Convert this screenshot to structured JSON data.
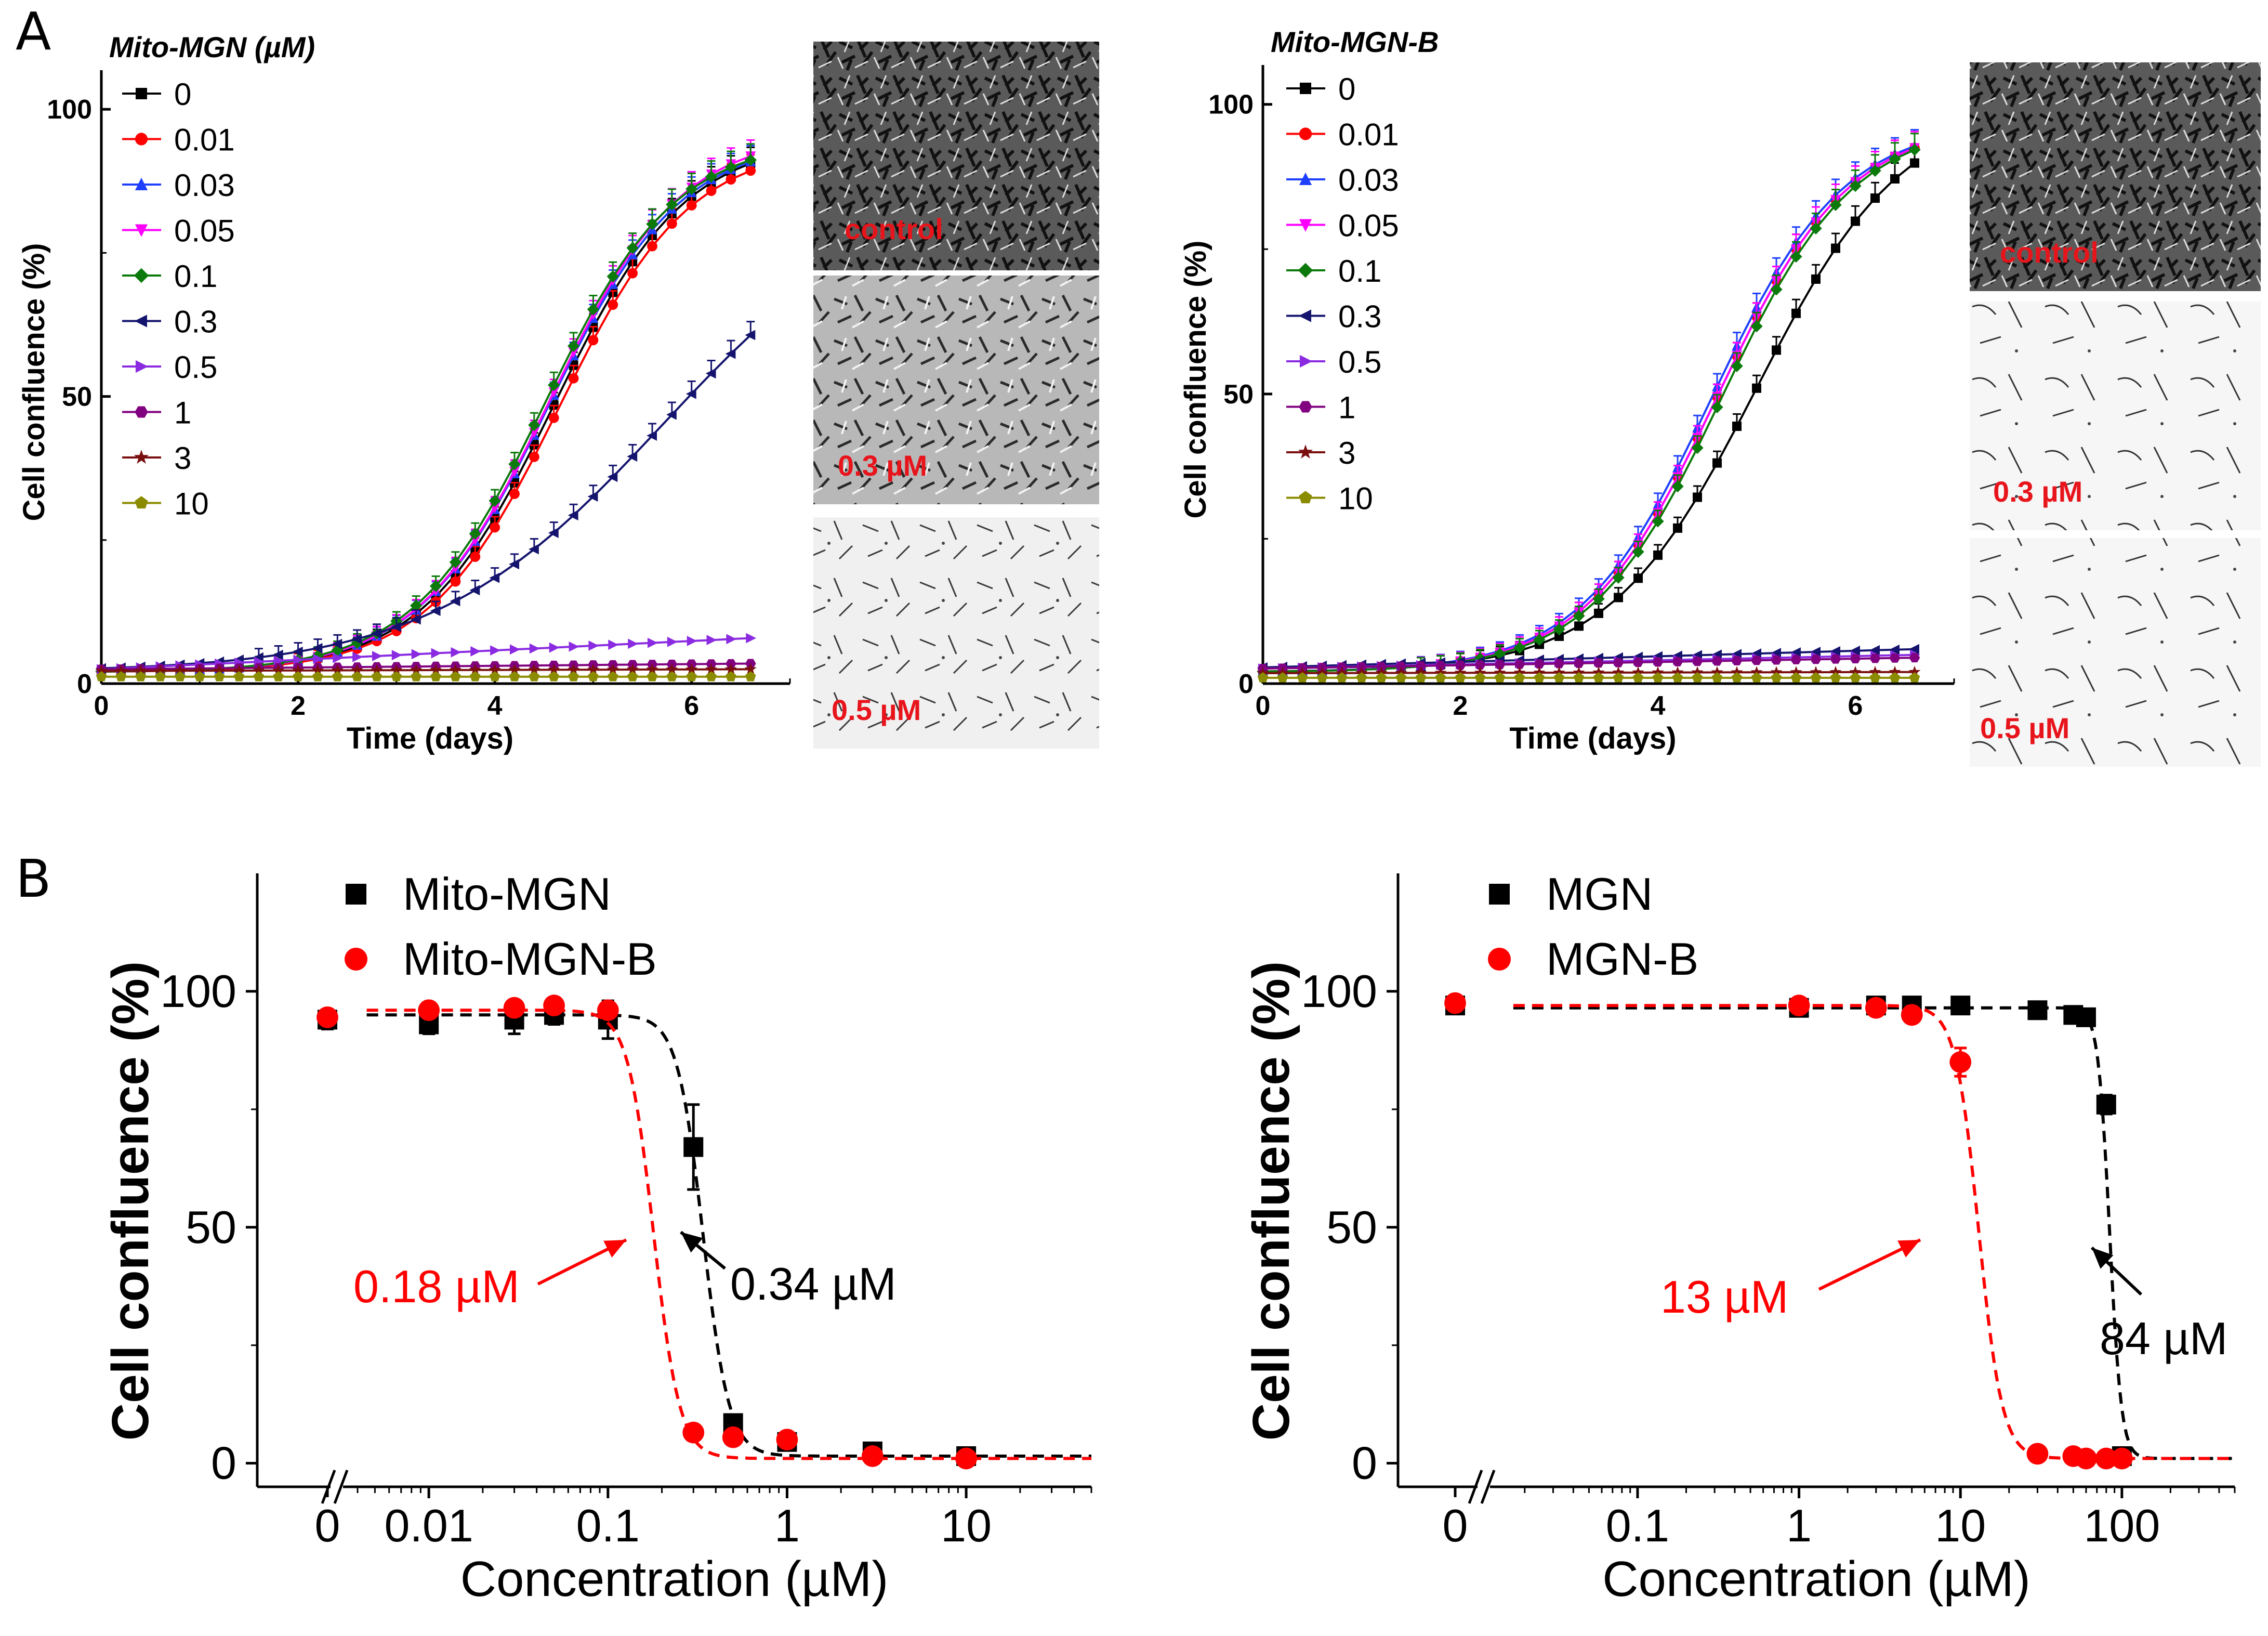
{
  "panel_labels": {
    "a": "A",
    "b": "B"
  },
  "colors": {
    "0": "#000000",
    "0.01": "#ff0000",
    "0.03": "#1f3fff",
    "0.05": "#ff00ff",
    "0.1": "#0b7a0b",
    "0.3": "#14146e",
    "0.5": "#8a2be2",
    "1": "#800080",
    "3": "#7a0f0f",
    "10": "#8b8b00",
    "red": "#ff0000",
    "black": "#000000"
  },
  "micrographs": {
    "left": [
      "control",
      "0.3 µM",
      "0.5 µM"
    ],
    "right": [
      "control",
      "0.3 µM",
      "0.5 µM"
    ]
  },
  "chart_data": [
    {
      "id": "A-left",
      "type": "line",
      "legend_title": "Mito-MGN (µM)",
      "xlabel": "Time (days)",
      "ylabel": "Cell confluence (%)",
      "xlim": [
        0,
        7
      ],
      "ylim": [
        0,
        105
      ],
      "xticks": [
        "0",
        "2",
        "4",
        "6"
      ],
      "yticks": [
        "0",
        "50",
        "100"
      ],
      "legend": [
        "0",
        "0.01",
        "0.03",
        "0.05",
        "0.1",
        "0.3",
        "0.5",
        "1",
        "3",
        "10"
      ],
      "series": [
        {
          "name": "0",
          "marker": "square",
          "color_key": "0",
          "model": "logistic",
          "top": 95,
          "mid": 4.6,
          "k": 1.5,
          "base": 2
        },
        {
          "name": "0.01",
          "marker": "circle",
          "color_key": "0.01",
          "model": "logistic",
          "top": 94,
          "mid": 4.65,
          "k": 1.5,
          "base": 2
        },
        {
          "name": "0.03",
          "marker": "triangle-up",
          "color_key": "0.03",
          "model": "logistic",
          "top": 95,
          "mid": 4.55,
          "k": 1.5,
          "base": 2
        },
        {
          "name": "0.05",
          "marker": "triangle-down",
          "color_key": "0.05",
          "model": "logistic",
          "top": 96,
          "mid": 4.55,
          "k": 1.5,
          "base": 2
        },
        {
          "name": "0.1",
          "marker": "diamond",
          "color_key": "0.1",
          "model": "logistic",
          "top": 95,
          "mid": 4.5,
          "k": 1.5,
          "base": 2
        },
        {
          "name": "0.3",
          "marker": "triangle-left",
          "color_key": "0.3",
          "model": "logistic",
          "top": 88,
          "mid": 5.7,
          "k": 0.85,
          "base": 2
        },
        {
          "name": "0.5",
          "marker": "triangle-right",
          "color_key": "0.5",
          "model": "linear",
          "start": 2.5,
          "end": 8
        },
        {
          "name": "1",
          "marker": "hexagon",
          "color_key": "1",
          "model": "linear",
          "start": 2.5,
          "end": 3.5
        },
        {
          "name": "3",
          "marker": "star",
          "color_key": "3",
          "model": "linear",
          "start": 2.2,
          "end": 2.5
        },
        {
          "name": "10",
          "marker": "pentagon",
          "color_key": "10",
          "model": "linear",
          "start": 1.2,
          "end": 1.2
        }
      ]
    },
    {
      "id": "A-right",
      "type": "line",
      "legend_title": "Mito-MGN-B",
      "xlabel": "Time (days)",
      "ylabel": "Cell confluence (%)",
      "xlim": [
        0,
        7
      ],
      "ylim": [
        0,
        105
      ],
      "xticks": [
        "0",
        "2",
        "4",
        "6"
      ],
      "yticks": [
        "0",
        "50",
        "100"
      ],
      "legend": [
        "0",
        "0.01",
        "0.03",
        "0.05",
        "0.1",
        "0.3",
        "0.5",
        "1",
        "3",
        "10"
      ],
      "series": [
        {
          "name": "0",
          "marker": "square",
          "color_key": "0",
          "model": "logistic",
          "top": 100,
          "mid": 5.0,
          "k": 1.35,
          "base": 2
        },
        {
          "name": "0.01",
          "marker": "circle",
          "color_key": "0.01",
          "model": "logistic",
          "top": 97,
          "mid": 4.6,
          "k": 1.5,
          "base": 2
        },
        {
          "name": "0.03",
          "marker": "triangle-up",
          "color_key": "0.03",
          "model": "logistic",
          "top": 97,
          "mid": 4.55,
          "k": 1.5,
          "base": 2
        },
        {
          "name": "0.05",
          "marker": "triangle-down",
          "color_key": "0.05",
          "model": "logistic",
          "top": 97,
          "mid": 4.6,
          "k": 1.5,
          "base": 2
        },
        {
          "name": "0.1",
          "marker": "diamond",
          "color_key": "0.1",
          "model": "logistic",
          "top": 97,
          "mid": 4.65,
          "k": 1.5,
          "base": 2
        },
        {
          "name": "0.3",
          "marker": "triangle-left",
          "color_key": "0.3",
          "model": "linear",
          "start": 2.8,
          "end": 6
        },
        {
          "name": "0.5",
          "marker": "triangle-right",
          "color_key": "0.5",
          "model": "linear",
          "start": 2.6,
          "end": 5
        },
        {
          "name": "1",
          "marker": "hexagon",
          "color_key": "1",
          "model": "linear",
          "start": 2.6,
          "end": 4.5
        },
        {
          "name": "3",
          "marker": "star",
          "color_key": "3",
          "model": "linear",
          "start": 1.8,
          "end": 2.0
        },
        {
          "name": "10",
          "marker": "pentagon",
          "color_key": "10",
          "model": "linear",
          "start": 1.0,
          "end": 1.0
        }
      ]
    },
    {
      "id": "B-left",
      "type": "scatter",
      "xlabel": "Concentration (µM)",
      "ylabel": "Cell confluence (%)",
      "xscale": "log",
      "xlim_log": [
        0.004,
        50
      ],
      "ylim": [
        -5,
        125
      ],
      "xticks": [
        {
          "v": 0.01,
          "label": "0.01"
        },
        {
          "v": 0.1,
          "label": "0.1"
        },
        {
          "v": 1,
          "label": "1"
        },
        {
          "v": 10,
          "label": "10"
        }
      ],
      "zero_label": "0",
      "yticks": [
        "0",
        "50",
        "100"
      ],
      "series": [
        {
          "name": "Mito-MGN",
          "marker": "square",
          "color_key": "black",
          "points": [
            [
              0,
              94,
              2
            ],
            [
              0.01,
              93,
              2
            ],
            [
              0.03,
              94,
              3
            ],
            [
              0.05,
              95,
              2
            ],
            [
              0.1,
              94,
              4
            ],
            [
              0.3,
              67,
              9
            ],
            [
              0.5,
              8.5,
              1
            ],
            [
              1,
              4.5,
              1
            ],
            [
              3,
              2.5,
              0.5
            ],
            [
              10,
              1.5,
              0.5
            ]
          ],
          "fit": {
            "top": 95,
            "bottom": 1.5,
            "ic50": 0.34,
            "hill": 6
          },
          "fit_xmin": 0.0045
        },
        {
          "name": "Mito-MGN-B",
          "marker": "circle",
          "color_key": "red",
          "points": [
            [
              0,
              94.5,
              1
            ],
            [
              0.01,
              96,
              1
            ],
            [
              0.03,
              96.5,
              1
            ],
            [
              0.05,
              97,
              1
            ],
            [
              0.1,
              96,
              1
            ],
            [
              0.3,
              6.5,
              0.8
            ],
            [
              0.5,
              5.5,
              0.8
            ],
            [
              1,
              5,
              0.8
            ],
            [
              3,
              1.5,
              0.5
            ],
            [
              10,
              1,
              0.5
            ]
          ],
          "fit": {
            "top": 96,
            "bottom": 1,
            "ic50": 0.18,
            "hill": 6
          },
          "fit_xmin": 0.0045
        }
      ],
      "annotations": [
        {
          "text": "0.18 µM",
          "color_key": "red"
        },
        {
          "text": "0.34 µM",
          "color_key": "black"
        }
      ]
    },
    {
      "id": "B-right",
      "type": "scatter",
      "xlabel": "Concentration (µM)",
      "ylabel": "Cell confluence (%)",
      "xscale": "log",
      "xlim_log": [
        0.015,
        500
      ],
      "ylim": [
        -5,
        125
      ],
      "xticks": [
        {
          "v": 0.1,
          "label": "0.1"
        },
        {
          "v": 1,
          "label": "1"
        },
        {
          "v": 10,
          "label": "10"
        },
        {
          "v": 100,
          "label": "100"
        }
      ],
      "zero_label": "0",
      "yticks": [
        "0",
        "50",
        "100"
      ],
      "series": [
        {
          "name": "MGN",
          "marker": "square",
          "color_key": "black",
          "points": [
            [
              0,
              97,
              1
            ],
            [
              1,
              96.5,
              1
            ],
            [
              3,
              97,
              1
            ],
            [
              5,
              97,
              1
            ],
            [
              10,
              97,
              1
            ],
            [
              30,
              96,
              1
            ],
            [
              50,
              95,
              1
            ],
            [
              60,
              94.5,
              1
            ],
            [
              80,
              76,
              2
            ],
            [
              100,
              1.5,
              0.5
            ]
          ],
          "fit": {
            "top": 96.5,
            "bottom": 1,
            "ic50": 84,
            "hill": 12
          },
          "fit_xmin": 0.017
        },
        {
          "name": "MGN-B",
          "marker": "circle",
          "color_key": "red",
          "points": [
            [
              0,
              97.5,
              1
            ],
            [
              1,
              97,
              1
            ],
            [
              3,
              96.5,
              1
            ],
            [
              5,
              95,
              1
            ],
            [
              10,
              85,
              3
            ],
            [
              30,
              2,
              0.5
            ],
            [
              50,
              1.5,
              0.5
            ],
            [
              60,
              1,
              0.5
            ],
            [
              80,
              1,
              0.5
            ],
            [
              100,
              1,
              0.5
            ]
          ],
          "fit": {
            "top": 97,
            "bottom": 1,
            "ic50": 13,
            "hill": 6
          },
          "fit_xmin": 0.017
        }
      ],
      "annotations": [
        {
          "text": "13 µM",
          "color_key": "red"
        },
        {
          "text": "84 µM",
          "color_key": "black"
        }
      ]
    }
  ]
}
